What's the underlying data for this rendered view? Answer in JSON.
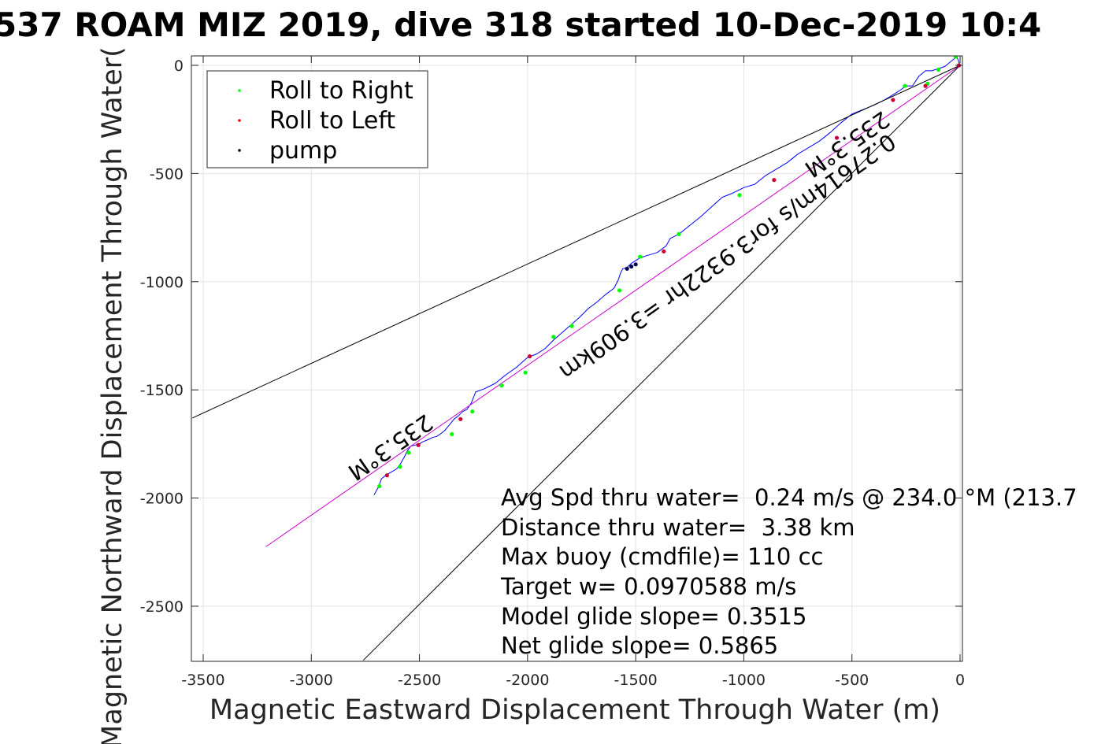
{
  "chart_data": {
    "type": "line",
    "title": "537 ROAM MIZ 2019, dive 318 started 10-Dec-2019 10:4",
    "xlabel": "Magnetic Eastward Displacement Through Water (m)",
    "ylabel": "Magnetic Northward Displacement Through Water(",
    "xlim": [
      -3550,
      0
    ],
    "ylim": [
      -2750,
      45
    ],
    "xticks": [
      -3500,
      -3000,
      -2500,
      -2000,
      -1500,
      -1000,
      -500,
      0
    ],
    "yticks": [
      0,
      -500,
      -1000,
      -1500,
      -2000,
      -2500
    ],
    "grid": true,
    "legend_position": "top-left",
    "legend": [
      {
        "label": "Roll to Right",
        "color": "#00ff00",
        "marker": "dot"
      },
      {
        "label": "Roll to Left",
        "color": "#ff0000",
        "marker": "dot"
      },
      {
        "label": "pump",
        "color": "#000000",
        "marker": "dot"
      }
    ],
    "series": [
      {
        "name": "",
        "color": "#0000ff",
        "x": [
          -2710,
          -2690,
          -2675,
          -2655,
          -2630,
          -2605,
          -2590,
          -2570,
          -2555,
          -2540,
          -2520,
          -2500,
          -2485,
          -2460,
          -2440,
          -2420,
          -2405,
          -2385,
          -2360,
          -2340,
          -2320,
          -2300,
          -2280,
          -2260,
          -2250,
          -2240,
          -2200,
          -2150,
          -2100,
          -2050,
          -2000,
          -1960,
          -1920,
          -1880,
          -1840,
          -1800,
          -1760,
          -1720,
          -1680,
          -1640,
          -1600,
          -1580,
          -1570,
          -1560,
          -1540,
          -1520,
          -1480,
          -1450,
          -1400,
          -1360,
          -1340,
          -1300,
          -1250,
          -1200,
          -1150,
          -1100,
          -1050,
          -1000,
          -950,
          -900,
          -850,
          -800,
          -750,
          -700,
          -650,
          -600,
          -550,
          -500,
          -450,
          -400,
          -350,
          -300,
          -270,
          -250,
          -220,
          -190,
          -160,
          -130,
          -100,
          -70,
          -40,
          -15,
          0
        ],
        "y": [
          -1985,
          -1950,
          -1910,
          -1895,
          -1880,
          -1865,
          -1845,
          -1810,
          -1780,
          -1760,
          -1755,
          -1750,
          -1740,
          -1730,
          -1720,
          -1715,
          -1705,
          -1690,
          -1660,
          -1635,
          -1620,
          -1600,
          -1590,
          -1560,
          -1535,
          -1510,
          -1495,
          -1470,
          -1430,
          -1395,
          -1350,
          -1335,
          -1310,
          -1270,
          -1235,
          -1200,
          -1165,
          -1125,
          -1095,
          -1060,
          -1030,
          -990,
          -960,
          -940,
          -935,
          -915,
          -890,
          -880,
          -865,
          -835,
          -800,
          -780,
          -740,
          -700,
          -655,
          -610,
          -590,
          -565,
          -550,
          -510,
          -480,
          -450,
          -410,
          -380,
          -350,
          -310,
          -265,
          -225,
          -205,
          -185,
          -160,
          -130,
          -110,
          -95,
          -95,
          -50,
          -25,
          -25,
          -15,
          -5,
          20,
          40,
          0
        ]
      },
      {
        "name": "",
        "color": "#cc00cc",
        "x": [
          -3210,
          0
        ],
        "y": [
          -2225,
          0
        ]
      },
      {
        "name": "",
        "color": "#000000",
        "x": [
          -3550,
          0
        ],
        "y": [
          -1630,
          0
        ]
      },
      {
        "name": "",
        "color": "#000000",
        "x": [
          -2760,
          0
        ],
        "y": [
          -2750,
          0
        ]
      }
    ],
    "markers": {
      "roll_right": [
        [
          -2685,
          -1945
        ],
        [
          -2590,
          -1855
        ],
        [
          -2550,
          -1790
        ],
        [
          -2350,
          -1705
        ],
        [
          -2255,
          -1600
        ],
        [
          -2120,
          -1480
        ],
        [
          -2010,
          -1420
        ],
        [
          -1880,
          -1255
        ],
        [
          -1795,
          -1205
        ],
        [
          -1575,
          -1040
        ],
        [
          -1480,
          -885
        ],
        [
          -1300,
          -780
        ],
        [
          -1020,
          -600
        ],
        [
          -255,
          -95
        ],
        [
          -150,
          -85
        ],
        [
          -100,
          -20
        ],
        [
          -20,
          40
        ]
      ],
      "roll_left": [
        [
          -2650,
          -1895
        ],
        [
          -2505,
          -1755
        ],
        [
          -2310,
          -1635
        ],
        [
          -1990,
          -1345
        ],
        [
          -1370,
          -860
        ],
        [
          -860,
          -530
        ],
        [
          -570,
          -335
        ],
        [
          -310,
          -160
        ],
        [
          -160,
          -95
        ],
        [
          -5,
          0
        ]
      ],
      "pump": [
        [
          -1540,
          -940
        ],
        [
          -1520,
          -930
        ],
        [
          -1500,
          -920
        ]
      ]
    },
    "annotations": {
      "heading_a": "235.3°M",
      "heading_b": "235.3°M",
      "speed_line": "0.27614m/s for3.9322hr =3.909km",
      "stats": [
        "Avg Spd thru water=  0.24 m/s @ 234.0 °M (213.7",
        "Distance thru water=  3.38 km",
        "Max buoy (cmdfile)= 110 cc",
        "Target w= 0.0970588 m/s",
        "Model glide slope= 0.3515",
        "Net glide slope= 0.5865"
      ]
    }
  }
}
